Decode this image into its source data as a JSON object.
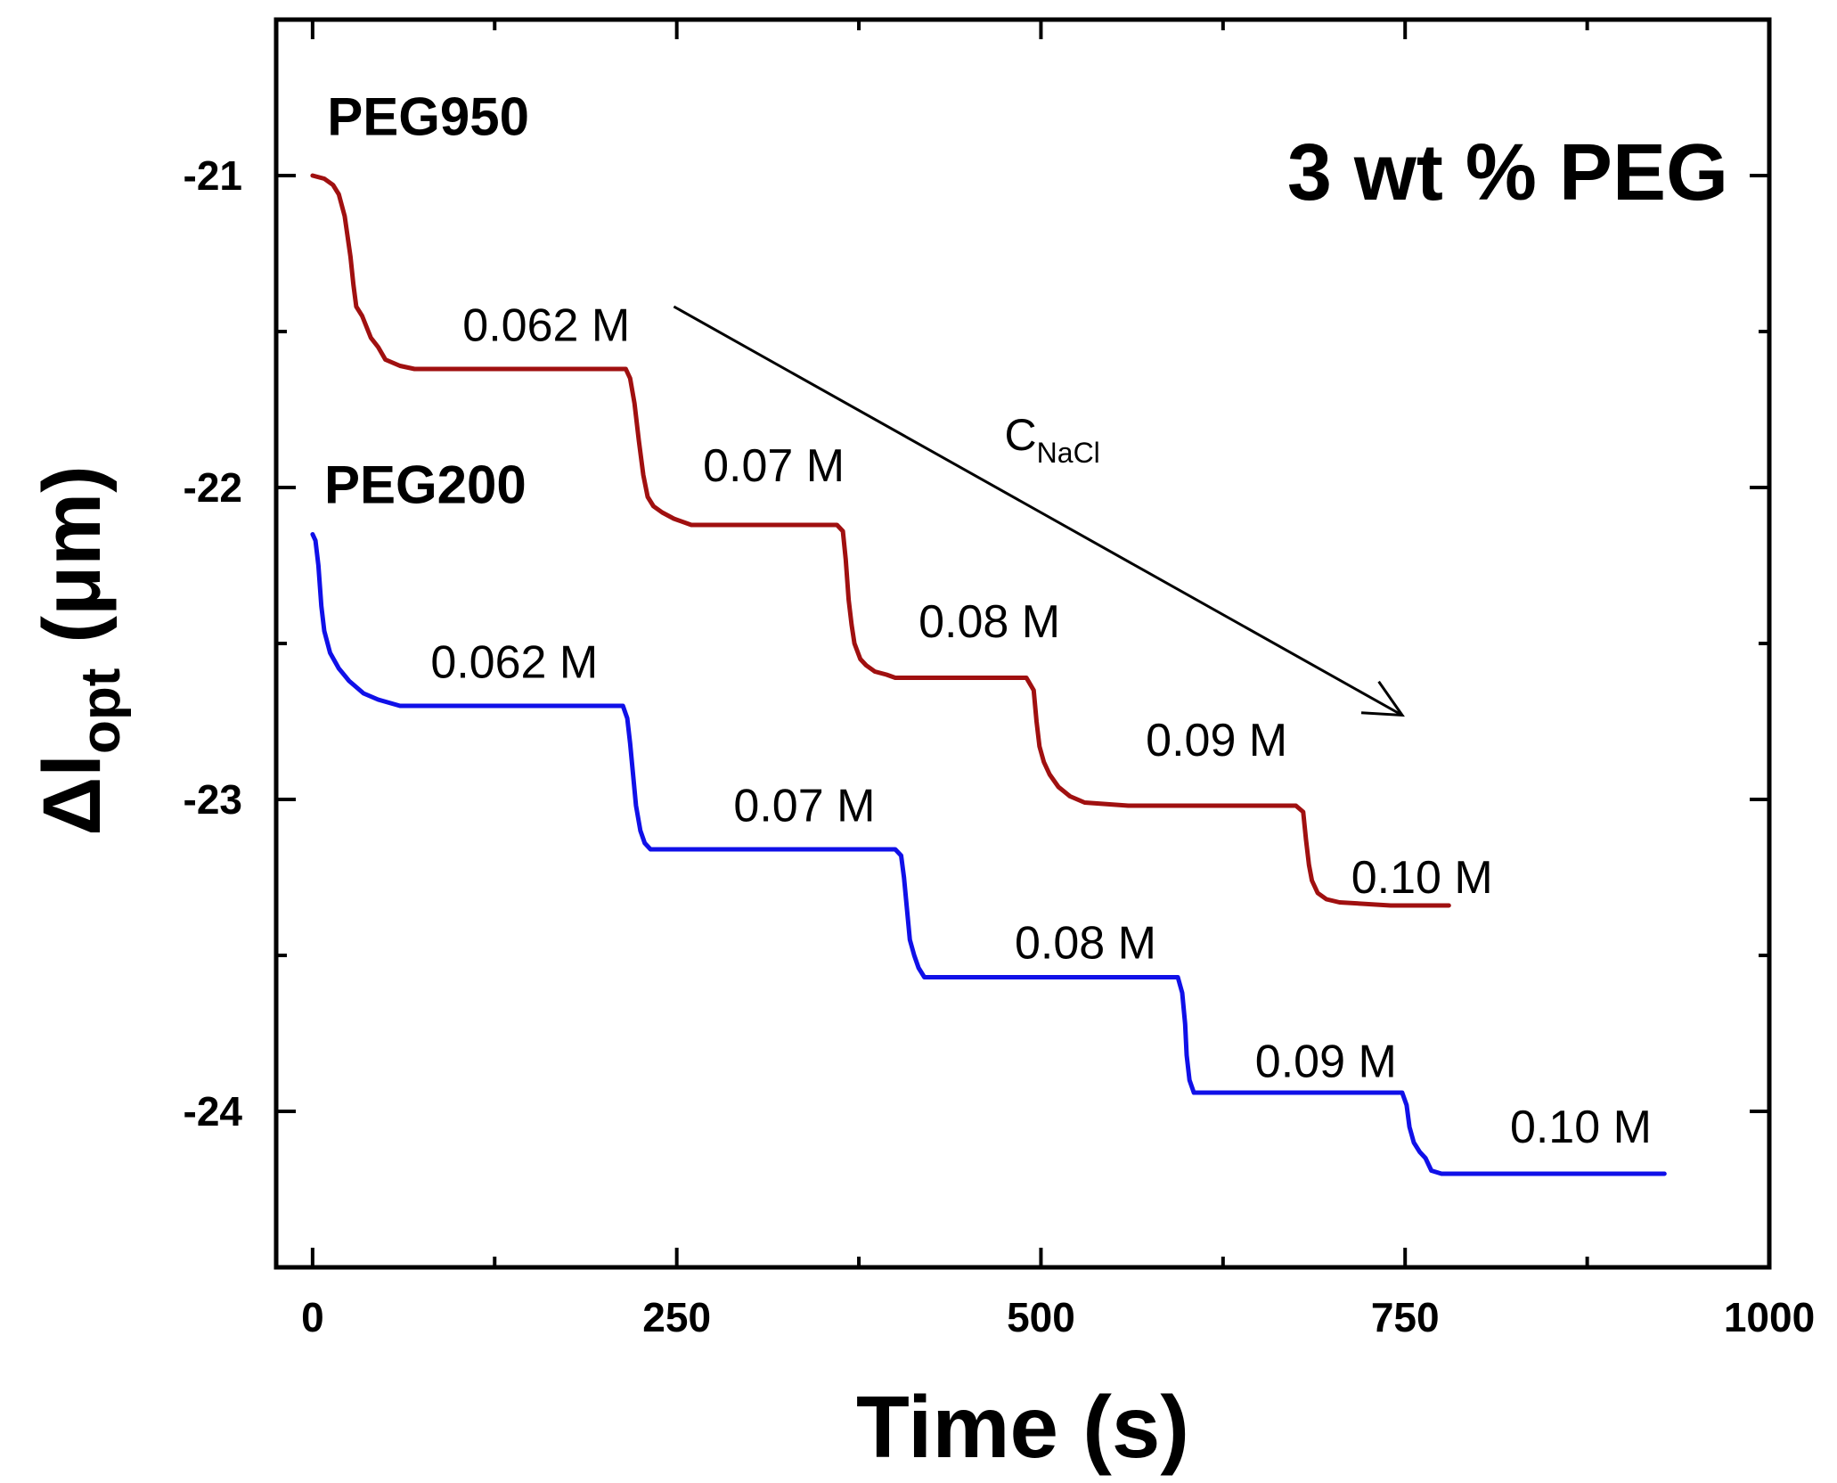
{
  "chart_data": {
    "type": "line",
    "title": "3 wt % PEG",
    "xlabel": "Time (s)",
    "ylabel": {
      "main": "Δl",
      "sub": "opt",
      "unit": "(μm)"
    },
    "xlim": [
      -25,
      1000
    ],
    "ylim": [
      -24.5,
      -20.5
    ],
    "x_ticks": [
      0,
      250,
      500,
      750,
      1000
    ],
    "y_ticks": [
      -21,
      -22,
      -23,
      -24
    ],
    "grid": false,
    "series": [
      {
        "name": "PEG950",
        "color": "#a01010",
        "x": [
          0,
          8,
          14,
          18,
          22,
          26,
          28,
          30,
          34,
          40,
          45,
          50,
          55,
          60,
          70,
          80,
          100,
          150,
          200,
          215,
          218,
          221,
          224,
          227,
          230,
          234,
          240,
          248,
          260,
          300,
          360,
          364,
          366,
          368,
          370,
          372,
          376,
          380,
          386,
          394,
          400,
          420,
          490,
          495,
          497,
          499,
          502,
          506,
          512,
          520,
          530,
          560,
          620,
          675,
          680,
          682,
          684,
          686,
          690,
          696,
          705,
          740,
          780
        ],
        "y": [
          -21.0,
          -21.01,
          -21.03,
          -21.06,
          -21.13,
          -21.26,
          -21.35,
          -21.42,
          -21.45,
          -21.52,
          -21.55,
          -21.59,
          -21.6,
          -21.61,
          -21.62,
          -21.62,
          -21.62,
          -21.62,
          -21.62,
          -21.62,
          -21.65,
          -21.73,
          -21.85,
          -21.96,
          -22.03,
          -22.06,
          -22.08,
          -22.1,
          -22.12,
          -22.12,
          -22.12,
          -22.14,
          -22.23,
          -22.36,
          -22.44,
          -22.5,
          -22.55,
          -22.57,
          -22.59,
          -22.6,
          -22.61,
          -22.61,
          -22.61,
          -22.65,
          -22.75,
          -22.83,
          -22.88,
          -22.92,
          -22.96,
          -22.99,
          -23.01,
          -23.02,
          -23.02,
          -23.02,
          -23.04,
          -23.13,
          -23.21,
          -23.26,
          -23.3,
          -23.32,
          -23.33,
          -23.34,
          -23.34
        ]
      },
      {
        "name": "PEG200",
        "color": "#1010e8",
        "x": [
          0,
          2,
          4,
          6,
          8,
          12,
          18,
          25,
          35,
          45,
          60,
          80,
          120,
          200,
          213,
          216,
          218,
          220,
          222,
          225,
          228,
          232,
          240,
          260,
          300,
          350,
          400,
          404,
          406,
          408,
          410,
          413,
          416,
          420,
          426,
          440,
          500,
          594,
          597,
          599,
          600,
          602,
          605,
          610,
          620,
          700,
          748,
          751,
          753,
          756,
          760,
          764,
          768,
          775,
          800,
          900,
          928
        ],
        "y": [
          -22.15,
          -22.17,
          -22.25,
          -22.38,
          -22.46,
          -22.53,
          -22.58,
          -22.62,
          -22.66,
          -22.68,
          -22.7,
          -22.7,
          -22.7,
          -22.7,
          -22.7,
          -22.74,
          -22.82,
          -22.92,
          -23.02,
          -23.1,
          -23.14,
          -23.16,
          -23.16,
          -23.16,
          -23.16,
          -23.16,
          -23.16,
          -23.18,
          -23.25,
          -23.35,
          -23.45,
          -23.5,
          -23.54,
          -23.57,
          -23.57,
          -23.57,
          -23.57,
          -23.57,
          -23.62,
          -23.72,
          -23.82,
          -23.9,
          -23.94,
          -23.94,
          -23.94,
          -23.94,
          -23.94,
          -23.98,
          -24.05,
          -24.1,
          -24.13,
          -24.15,
          -24.19,
          -24.2,
          -24.2,
          -24.2,
          -24.2
        ]
      }
    ],
    "series_labels": [
      {
        "text": "PEG950",
        "x": 10,
        "y": -20.87
      },
      {
        "text": "PEG200",
        "x": 8,
        "y": -22.05
      }
    ],
    "annotations": [
      {
        "text": "0.062 M",
        "x": 103,
        "y": -21.53
      },
      {
        "text": "0.07 M",
        "x": 268,
        "y": -21.98
      },
      {
        "text": "0.08 M",
        "x": 416,
        "y": -22.48
      },
      {
        "text": "0.09 M",
        "x": 572,
        "y": -22.86
      },
      {
        "text": "0.10 M",
        "x": 713,
        "y": -23.3
      },
      {
        "text": "0.062 M",
        "x": 81,
        "y": -22.61
      },
      {
        "text": "0.07 M",
        "x": 289,
        "y": -23.07
      },
      {
        "text": "0.08 M",
        "x": 482,
        "y": -23.51
      },
      {
        "text": "0.09 M",
        "x": 647,
        "y": -23.89
      },
      {
        "text": "0.10 M",
        "x": 822,
        "y": -24.1
      }
    ],
    "arrow": {
      "label": "C",
      "label_sub": "NaCl",
      "x0": 248,
      "y0": -21.42,
      "x1": 748,
      "y1": -22.73,
      "label_x": 475,
      "label_y": -21.88
    },
    "title_position": "top-right"
  }
}
